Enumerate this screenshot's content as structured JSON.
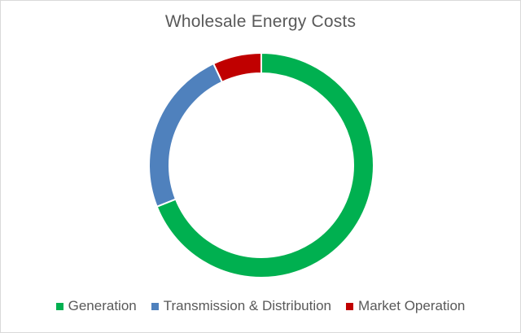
{
  "chart_data": {
    "type": "pie",
    "variant": "donut",
    "title": "Wholesale Energy Costs",
    "categories": [
      "Generation",
      "Transmission & Distribution",
      "Market Operation"
    ],
    "values": [
      69,
      24,
      7
    ],
    "colors": [
      "#00b050",
      "#4f81bd",
      "#c00000"
    ],
    "legend": "bottom"
  }
}
